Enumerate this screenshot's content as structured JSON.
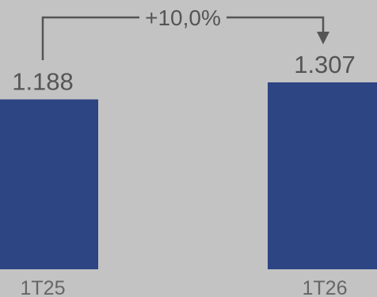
{
  "chart_data": {
    "type": "bar",
    "categories": [
      "1T25",
      "1T26"
    ],
    "values": [
      1188,
      1307
    ],
    "value_labels": [
      "1.188",
      "1.307"
    ],
    "bar_color": "#2e4584",
    "background_color": "#c3c3c3",
    "annotation": {
      "label": "+10,0%",
      "from": "1T25",
      "to": "1T26"
    },
    "title": "",
    "xlabel": "",
    "ylabel": "",
    "grid": false,
    "legend": "none"
  }
}
